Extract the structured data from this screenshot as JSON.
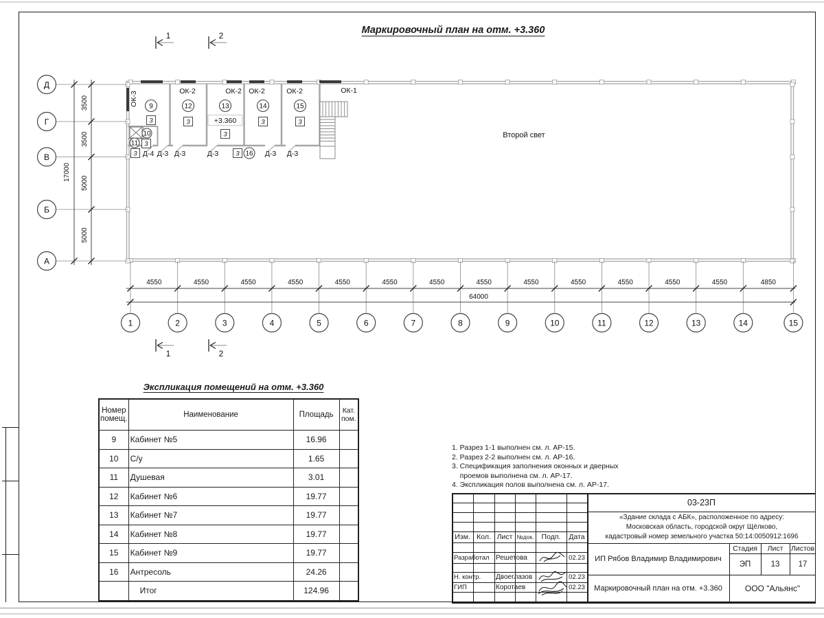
{
  "page": {
    "plan_title": "Маркировочный план на отм. +3.360",
    "schedule_title": "Экспликация помещений на отм. +3.360",
    "second_light": "Второй свет",
    "elevation": "+3.360"
  },
  "plan": {
    "row_axes": [
      "Д",
      "Г",
      "В",
      "Б",
      "А"
    ],
    "row_dims": [
      "3500",
      "3500",
      "5000",
      "5000"
    ],
    "row_total": "17000",
    "col_axes": [
      "1",
      "2",
      "3",
      "4",
      "5",
      "6",
      "7",
      "8",
      "9",
      "10",
      "11",
      "12",
      "13",
      "14",
      "15"
    ],
    "col_dims": [
      "4550",
      "4550",
      "4550",
      "4550",
      "4550",
      "4550",
      "4550",
      "4550",
      "4550",
      "4550",
      "4550",
      "4550",
      "4550",
      "4850"
    ],
    "col_total": "64000",
    "section_markers": [
      "1",
      "2"
    ],
    "window_labels": {
      "ok3": "ОК-3",
      "ok2": [
        "ОК-2",
        "ОК-2",
        "ОК-2",
        "ОК-2"
      ],
      "ok1": "ОК-1"
    },
    "door_labels": [
      "Д-4",
      "Д-3",
      "Д-3",
      "Д-3",
      "Д-3",
      "Д-3"
    ],
    "rooms": [
      {
        "num": "9",
        "cat": "3"
      },
      {
        "num": "10",
        "cat": "3"
      },
      {
        "num": "11",
        "cat": "3"
      },
      {
        "num": "12",
        "cat": "3"
      },
      {
        "num": "13",
        "cat": "3"
      },
      {
        "num": "14",
        "cat": "3"
      },
      {
        "num": "15",
        "cat": "3"
      },
      {
        "num": "16",
        "cat": "3"
      }
    ]
  },
  "schedule": {
    "col_headers": [
      "Номер помещ.",
      "Наименование",
      "Площадь",
      "Кат. пом."
    ],
    "rows": [
      {
        "num": "9",
        "name": "Кабинет №5",
        "area": "16.96",
        "cat": ""
      },
      {
        "num": "10",
        "name": "С/у",
        "area": "1.65",
        "cat": ""
      },
      {
        "num": "11",
        "name": "Душевая",
        "area": "3.01",
        "cat": ""
      },
      {
        "num": "12",
        "name": "Кабинет №6",
        "area": "19.77",
        "cat": ""
      },
      {
        "num": "13",
        "name": "Кабинет №7",
        "area": "19.77",
        "cat": ""
      },
      {
        "num": "14",
        "name": "Кабинет №8",
        "area": "19.77",
        "cat": ""
      },
      {
        "num": "15",
        "name": "Кабинет №9",
        "area": "19.77",
        "cat": ""
      },
      {
        "num": "16",
        "name": "Антресоль",
        "area": "24.26",
        "cat": ""
      },
      {
        "num": "",
        "name": "Итог",
        "area": "124.96",
        "cat": ""
      }
    ]
  },
  "notes": {
    "lines": [
      "1. Разрез 1-1 выполнен см. л. АР-15.",
      "2. Разрез 2-2 выполнен см. л. АР-16.",
      "3. Спецификация заполнения оконных и дверных",
      "    проемов выполнена см. л. АР-17.",
      "4. Экспликация полов выполнена см. л. АР-17."
    ]
  },
  "title_block": {
    "doc_number": "03-23П",
    "project_lines": [
      "«Здание склада с АБК», расположенное по адресу:",
      "Московская область, городской округ Щёлково,",
      "кадастровый номер земельного участка 50:14:0050912:1696"
    ],
    "client": "ИП Рябов Владимир Владимирович",
    "sheet_title": "Маркировочный план на отм. +3.360",
    "company": "ООО \"Альянс\"",
    "columns": [
      "Изм.",
      "Кол.",
      "Лист",
      "№док.",
      "Подп.",
      "Дата"
    ],
    "stage_label": "Стадия",
    "sheet_label": "Лист",
    "sheets_label": "Листов",
    "stage": "ЭП",
    "sheet_number": "13",
    "sheet_count": "17",
    "signatures": [
      {
        "role": "Разработал",
        "name": "Решетова",
        "date": "02.23"
      },
      {
        "role": "Н. контр.",
        "name": "Двоеглазов",
        "date": "02.23"
      },
      {
        "role": "ГИП",
        "name": "Коротаев",
        "date": "02.23"
      }
    ]
  }
}
